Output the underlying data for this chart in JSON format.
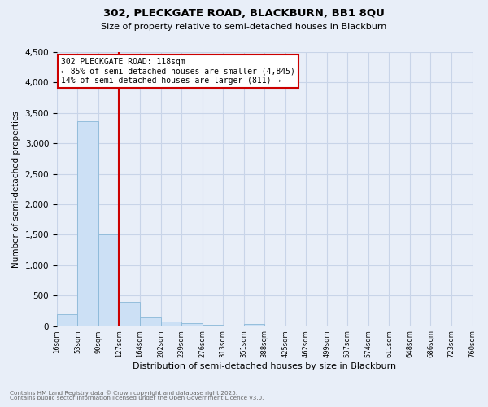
{
  "title1": "302, PLECKGATE ROAD, BLACKBURN, BB1 8QU",
  "title2": "Size of property relative to semi-detached houses in Blackburn",
  "xlabel": "Distribution of semi-detached houses by size in Blackburn",
  "ylabel": "Number of semi-detached properties",
  "bar_values": [
    200,
    3370,
    1500,
    390,
    140,
    80,
    45,
    25,
    10,
    30,
    0,
    0,
    0,
    0,
    0,
    0,
    0,
    0,
    0,
    0
  ],
  "bin_labels": [
    "16sqm",
    "53sqm",
    "90sqm",
    "127sqm",
    "164sqm",
    "202sqm",
    "239sqm",
    "276sqm",
    "313sqm",
    "351sqm",
    "388sqm",
    "425sqm",
    "462sqm",
    "499sqm",
    "537sqm",
    "574sqm",
    "611sqm",
    "648sqm",
    "686sqm",
    "723sqm",
    "760sqm"
  ],
  "bar_color": "#cce0f5",
  "bar_edge_color": "#8ab8d8",
  "vline_x_bin": 3,
  "vline_color": "#cc0000",
  "annotation_title": "302 PLECKGATE ROAD: 118sqm",
  "annotation_line1": "← 85% of semi-detached houses are smaller (4,845)",
  "annotation_line2": "14% of semi-detached houses are larger (811) →",
  "annotation_box_color": "#cc0000",
  "ylim": [
    0,
    4500
  ],
  "yticks": [
    0,
    500,
    1000,
    1500,
    2000,
    2500,
    3000,
    3500,
    4000,
    4500
  ],
  "grid_color": "#c8d4e8",
  "background_color": "#e8eef8",
  "footnote1": "Contains HM Land Registry data © Crown copyright and database right 2025.",
  "footnote2": "Contains public sector information licensed under the Open Government Licence v3.0."
}
